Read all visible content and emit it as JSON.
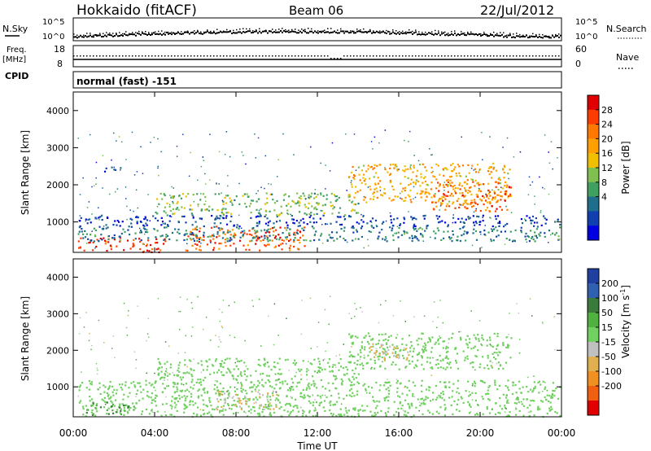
{
  "header": {
    "station": "Hokkaido (fitACF)",
    "beam": "Beam 06",
    "date": "22/Jul/2012"
  },
  "noise_panel": {
    "left_label": "N.Sky",
    "right_label": "N.Search",
    "ticks_left": [
      "10^5",
      "10^0"
    ],
    "ticks_right": [
      "10^5",
      "10^0"
    ]
  },
  "freq_panel": {
    "left_label_1": "Freq.",
    "left_label_2": "[MHz]",
    "ticks_left": [
      "18",
      "8"
    ],
    "right_label": "Nave",
    "ticks_right": [
      "60",
      "0"
    ]
  },
  "cpid": {
    "label": "CPID",
    "text": "normal (fast) -151"
  },
  "axes": {
    "ylabel": "Slant Range [km]",
    "xlabel": "Time UT",
    "yticks": [
      "4000",
      "3000",
      "2000",
      "1000"
    ],
    "xticks": [
      "00:00",
      "04:00",
      "08:00",
      "12:00",
      "16:00",
      "20:00",
      "00:00"
    ]
  },
  "power_colorbar": {
    "label": "Power [dB]",
    "ticks": [
      "28",
      "24",
      "20",
      "16",
      "12",
      "8",
      "4"
    ],
    "colors": [
      "#e00000",
      "#ff3c00",
      "#ff7800",
      "#ffa000",
      "#f0c000",
      "#80c050",
      "#40a060",
      "#1e6e8c",
      "#1040b0",
      "#0000e0"
    ]
  },
  "velocity_colorbar": {
    "label": "Velocity [m s",
    "label_sup": "-1",
    "label_end": "]",
    "ticks": [
      "200",
      "100",
      "50",
      "15",
      "-15",
      "-50",
      "-100",
      "-200"
    ],
    "colors": [
      "#2040a0",
      "#3060b0",
      "#3a7a3a",
      "#50b040",
      "#70d060",
      "#c0c0c0",
      "#e0b050",
      "#f09020",
      "#f06010",
      "#e00000"
    ]
  },
  "chart_data": {
    "type": "heatmap",
    "x_range_hours": [
      0,
      24
    ],
    "y_range_km": [
      180,
      4500
    ],
    "power_clusters": [
      {
        "t0": 0.2,
        "t1": 4.5,
        "r0": 200,
        "r1": 600,
        "power": 28
      },
      {
        "t0": 5.5,
        "t1": 11.5,
        "r0": 250,
        "r1": 900,
        "power": 26
      },
      {
        "t0": 0.2,
        "t1": 23.9,
        "r0": 900,
        "r1": 1200,
        "power": 6
      },
      {
        "t0": 4.0,
        "t1": 14.0,
        "r0": 1200,
        "r1": 1800,
        "power": 14
      },
      {
        "t0": 13.5,
        "t1": 21.5,
        "r0": 1500,
        "r1": 2600,
        "power": 20
      },
      {
        "t0": 17.5,
        "t1": 21.5,
        "r0": 1300,
        "r1": 2100,
        "power": 25
      },
      {
        "t0": 0.2,
        "t1": 23.9,
        "r0": 500,
        "r1": 900,
        "power": 10
      },
      {
        "t0": 1.5,
        "t1": 2.3,
        "r0": 2300,
        "r1": 2500,
        "power": 6
      }
    ],
    "velocity_clusters": [
      {
        "t0": 0.2,
        "t1": 23.9,
        "r0": 200,
        "r1": 1200,
        "velocity": 0
      },
      {
        "t0": 0.5,
        "t1": 3.0,
        "r0": 250,
        "r1": 600,
        "velocity": 50
      },
      {
        "t0": 7.0,
        "t1": 10.0,
        "r0": 400,
        "r1": 900,
        "velocity": -50
      },
      {
        "t0": 4.0,
        "t1": 14.0,
        "r0": 1200,
        "r1": 1800,
        "velocity": 0
      },
      {
        "t0": 13.5,
        "t1": 21.5,
        "r0": 1500,
        "r1": 2500,
        "velocity": 0
      },
      {
        "t0": 14.5,
        "t1": 16.5,
        "r0": 1700,
        "r1": 2200,
        "velocity": -50
      }
    ]
  }
}
